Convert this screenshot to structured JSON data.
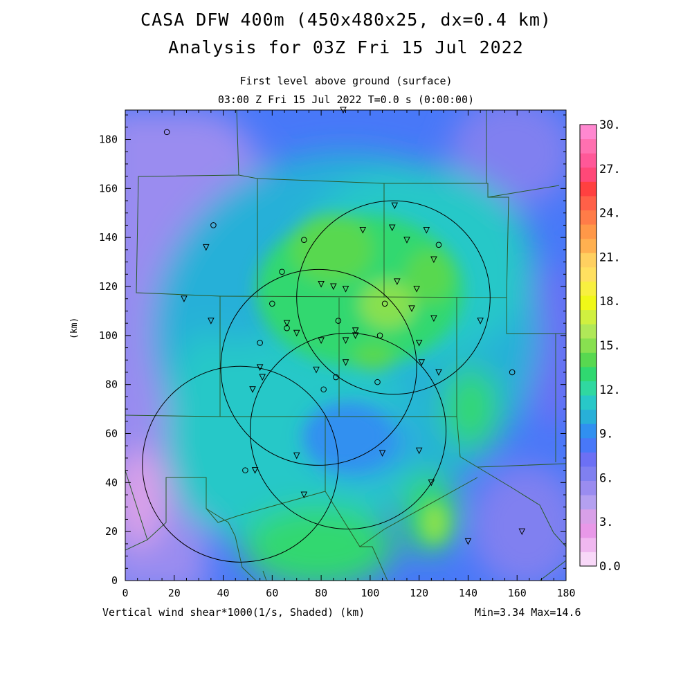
{
  "header": {
    "title_line1": "CASA DFW 400m (450x480x25, dx=0.4 km)",
    "title_line2": "Analysis for 03Z Fri 15 Jul 2022",
    "subtitle_line1": "First level above ground (surface)",
    "subtitle_line2": "03:00 Z Fri 15 Jul 2022   T=0.0 s (0:00:00)"
  },
  "footer": {
    "field_label": "Vertical wind shear*1000(1/s, Shaded)  (km)",
    "minmax": "Min=3.34 Max=14.6"
  },
  "axes": {
    "ylabel": "(km)",
    "x_ticks": [
      "0",
      "20",
      "40",
      "60",
      "80",
      "100",
      "120",
      "140",
      "160",
      "180"
    ],
    "y_ticks": [
      "0",
      "20",
      "40",
      "60",
      "80",
      "100",
      "120",
      "140",
      "160",
      "180"
    ],
    "x_range_km": [
      0,
      180
    ],
    "y_range_km": [
      0,
      192
    ]
  },
  "colorbar": {
    "labels": [
      "0.0",
      "3.",
      "6.",
      "9.",
      "12.",
      "15.",
      "18.",
      "21.",
      "24.",
      "27.",
      "30."
    ],
    "colors": [
      "#f8d8f8",
      "#f0b8f0",
      "#e898e8",
      "#d8a0e8",
      "#b4a0f0",
      "#9a8cf0",
      "#8080f0",
      "#6c70f4",
      "#4878f8",
      "#3090f0",
      "#28b0d8",
      "#28c8c8",
      "#30d8a0",
      "#30d870",
      "#58d850",
      "#88e050",
      "#b0e858",
      "#d0f040",
      "#f0f818",
      "#f8f040",
      "#ffe060",
      "#ffd060",
      "#ffb050",
      "#ff9848",
      "#ff7c48",
      "#ff6048",
      "#ff4040",
      "#ff4878",
      "#ff5898",
      "#ff70b0",
      "#ff88d0"
    ]
  },
  "stations": {
    "triangles": [
      [
        89,
        192
      ],
      [
        110,
        153
      ],
      [
        97,
        143
      ],
      [
        109,
        144
      ],
      [
        115,
        139
      ],
      [
        123,
        143
      ],
      [
        126,
        131
      ],
      [
        24,
        115
      ],
      [
        35,
        106
      ],
      [
        33,
        136
      ],
      [
        80,
        121
      ],
      [
        85,
        120
      ],
      [
        90,
        119
      ],
      [
        111,
        122
      ],
      [
        117,
        111
      ],
      [
        119,
        119
      ],
      [
        126,
        107
      ],
      [
        145,
        106
      ],
      [
        66,
        105
      ],
      [
        70,
        101
      ],
      [
        94,
        102
      ],
      [
        94,
        100
      ],
      [
        90,
        98
      ],
      [
        80,
        98
      ],
      [
        120,
        97
      ],
      [
        121,
        89
      ],
      [
        128,
        85
      ],
      [
        90,
        89
      ],
      [
        78,
        86
      ],
      [
        55,
        87
      ],
      [
        56,
        83
      ],
      [
        52,
        78
      ],
      [
        70,
        51
      ],
      [
        53,
        45
      ],
      [
        73,
        35
      ],
      [
        105,
        52
      ],
      [
        120,
        53
      ],
      [
        125,
        40
      ],
      [
        140,
        16
      ],
      [
        162,
        20
      ]
    ],
    "circles": [
      [
        17,
        183
      ],
      [
        36,
        145
      ],
      [
        73,
        139
      ],
      [
        128,
        137
      ],
      [
        64,
        126
      ],
      [
        60,
        113
      ],
      [
        106,
        113
      ],
      [
        87,
        106
      ],
      [
        66,
        103
      ],
      [
        55,
        97
      ],
      [
        104,
        100
      ],
      [
        86,
        83
      ],
      [
        81,
        78
      ],
      [
        103,
        81
      ],
      [
        158,
        85
      ],
      [
        49,
        45
      ]
    ]
  },
  "radar_rings": [
    {
      "center_km": [
        109.5,
        115.5
      ],
      "radius_km": 39.5
    },
    {
      "center_km": [
        79,
        87
      ],
      "radius_km": 40
    },
    {
      "center_km": [
        91,
        61
      ],
      "radius_km": 40
    },
    {
      "center_km": [
        47,
        47.5
      ],
      "radius_km": 40
    }
  ]
}
